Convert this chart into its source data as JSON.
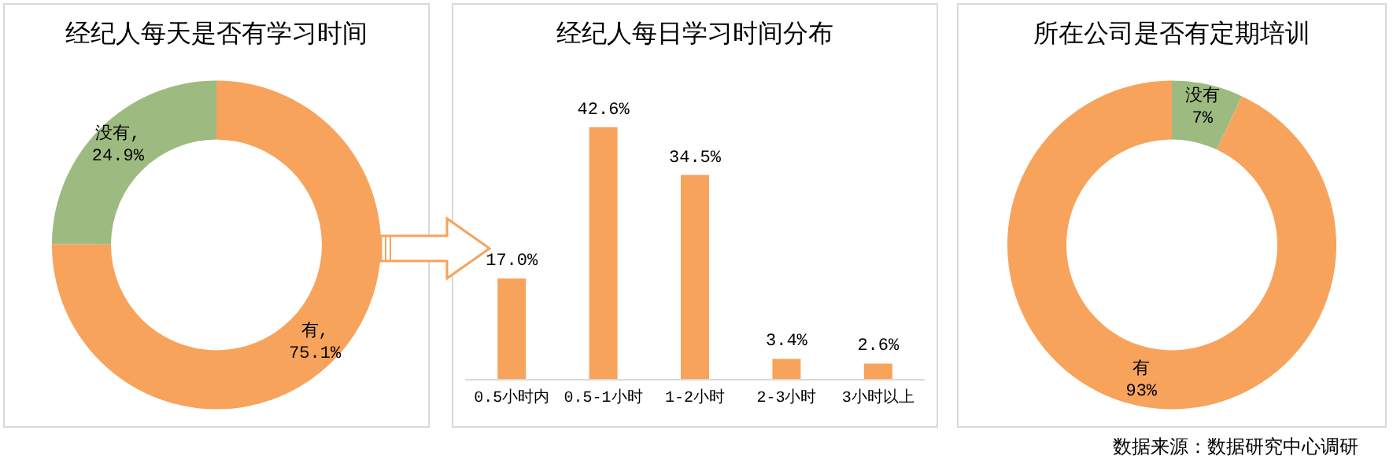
{
  "chart_data": [
    {
      "type": "donut",
      "title": "经纪人每天是否有学习时间",
      "categories": [
        "有",
        "没有"
      ],
      "values": [
        75.1,
        24.9
      ],
      "value_labels": [
        ",\n75.1%",
        ",\n24.9%"
      ],
      "colors": [
        "#f7a35c",
        "#9dbb81"
      ]
    },
    {
      "type": "bar",
      "title": "经纪人每日学习时间分布",
      "categories": [
        "0.5小时内",
        "0.5-1小时",
        "1-2小时",
        "2-3小时",
        "3小时以上"
      ],
      "values": [
        17.0,
        42.6,
        34.5,
        3.4,
        2.6
      ],
      "value_labels": [
        "17.0%",
        "42.6%",
        "34.5%",
        "3.4%",
        "2.6%"
      ],
      "color": "#f7a35c"
    },
    {
      "type": "donut",
      "title": "所在公司是否有定期培训",
      "categories": [
        "没有",
        "有"
      ],
      "values": [
        7,
        93
      ],
      "value_labels": [
        "7%",
        "93%"
      ],
      "colors": [
        "#9dbb81",
        "#f7a35c"
      ],
      "annotations": [
        "数据来源：数据研究中心调研"
      ]
    }
  ]
}
